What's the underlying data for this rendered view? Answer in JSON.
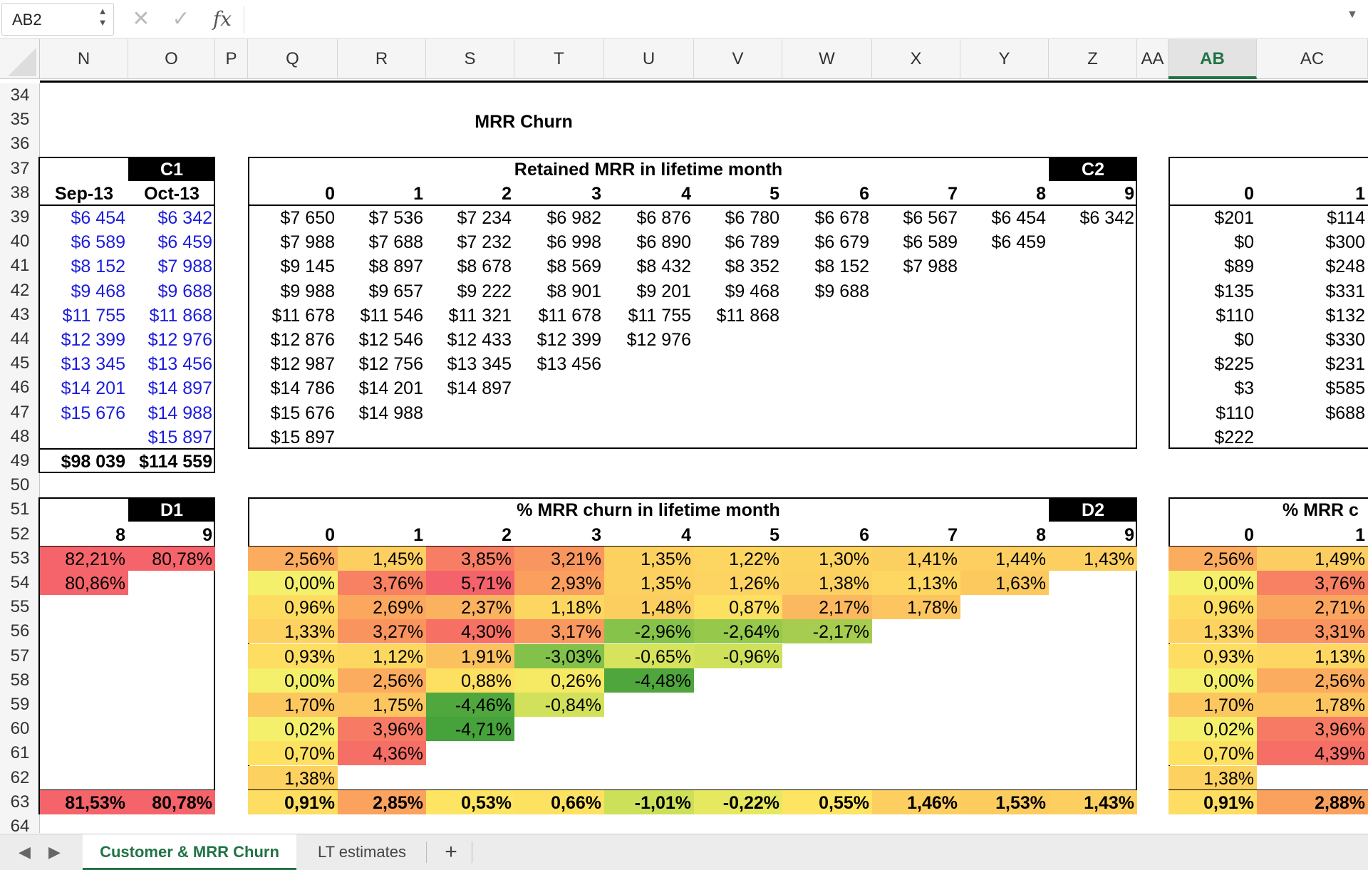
{
  "formula_bar": {
    "name_box": "AB2",
    "cancel": "✕",
    "confirm": "✓",
    "fx": "fx",
    "formula": ""
  },
  "columns": [
    "N",
    "O",
    "P",
    "Q",
    "R",
    "S",
    "T",
    "U",
    "V",
    "W",
    "X",
    "Y",
    "Z",
    "AA",
    "AB",
    "AC"
  ],
  "selected_column": "AB",
  "rows": [
    "34",
    "35",
    "36",
    "37",
    "38",
    "39",
    "40",
    "41",
    "42",
    "43",
    "44",
    "45",
    "46",
    "47",
    "48",
    "49",
    "50",
    "51",
    "52",
    "53",
    "54",
    "55",
    "56",
    "57",
    "58",
    "59",
    "60",
    "61",
    "62",
    "63",
    "64"
  ],
  "title": "MRR Churn",
  "c1": {
    "tag": "C1",
    "headers": [
      "Sep-13",
      "Oct-13"
    ],
    "values": [
      [
        "$6 454",
        "$6 342"
      ],
      [
        "$6 589",
        "$6 459"
      ],
      [
        "$8 152",
        "$7 988"
      ],
      [
        "$9 468",
        "$9 688"
      ],
      [
        "$11 755",
        "$11 868"
      ],
      [
        "$12 399",
        "$12 976"
      ],
      [
        "$13 345",
        "$13 456"
      ],
      [
        "$14 201",
        "$14 897"
      ],
      [
        "$15 676",
        "$14 988"
      ],
      [
        "",
        "$15 897"
      ]
    ],
    "totals": [
      "$98 039",
      "$114 559"
    ]
  },
  "c2": {
    "title": "Retained MRR in lifetime month",
    "tag": "C2",
    "headers": [
      "0",
      "1",
      "2",
      "3",
      "4",
      "5",
      "6",
      "7",
      "8",
      "9"
    ],
    "rows": [
      [
        "$7 650",
        "$7 536",
        "$7 234",
        "$6 982",
        "$6 876",
        "$6 780",
        "$6 678",
        "$6 567",
        "$6 454",
        "$6 342"
      ],
      [
        "$7 988",
        "$7 688",
        "$7 232",
        "$6 998",
        "$6 890",
        "$6 789",
        "$6 679",
        "$6 589",
        "$6 459"
      ],
      [
        "$9 145",
        "$8 897",
        "$8 678",
        "$8 569",
        "$8 432",
        "$8 352",
        "$8 152",
        "$7 988"
      ],
      [
        "$9 988",
        "$9 657",
        "$9 222",
        "$8 901",
        "$9 201",
        "$9 468",
        "$9 688"
      ],
      [
        "$11 678",
        "$11 546",
        "$11 321",
        "$11 678",
        "$11 755",
        "$11 868"
      ],
      [
        "$12 876",
        "$12 546",
        "$12 433",
        "$12 399",
        "$12 976"
      ],
      [
        "$12 987",
        "$12 756",
        "$13 345",
        "$13 456"
      ],
      [
        "$14 786",
        "$14 201",
        "$14 897"
      ],
      [
        "$15 676",
        "$14 988"
      ],
      [
        "$15 897"
      ]
    ]
  },
  "c3": {
    "headers": [
      "0",
      "1"
    ],
    "rows": [
      [
        "$201",
        "$114"
      ],
      [
        "$0",
        "$300"
      ],
      [
        "$89",
        "$248"
      ],
      [
        "$135",
        "$331"
      ],
      [
        "$110",
        "$132"
      ],
      [
        "$0",
        "$330"
      ],
      [
        "$225",
        "$231"
      ],
      [
        "$3",
        "$585"
      ],
      [
        "$110",
        "$688"
      ],
      [
        "$222",
        ""
      ]
    ]
  },
  "d1": {
    "tag": "D1",
    "headers": [
      "8",
      "9"
    ],
    "rows": [
      [
        {
          "v": "82,21%",
          "c": "#f4646a"
        },
        {
          "v": "80,78%",
          "c": "#f4646a"
        }
      ],
      [
        {
          "v": "80,86%",
          "c": "#f4646a"
        }
      ]
    ],
    "totals": [
      {
        "v": "81,53%",
        "c": "#f4646a"
      },
      {
        "v": "80,78%",
        "c": "#f4646a"
      }
    ]
  },
  "d2": {
    "title": "% MRR churn in lifetime month",
    "tag": "D2",
    "headers": [
      "0",
      "1",
      "2",
      "3",
      "4",
      "5",
      "6",
      "7",
      "8",
      "9"
    ],
    "rows": [
      [
        {
          "v": "2,56%",
          "c": "#fbac5e"
        },
        {
          "v": "1,45%",
          "c": "#fccf60"
        },
        {
          "v": "3,85%",
          "c": "#f77e64"
        },
        {
          "v": "3,21%",
          "c": "#f9965f"
        },
        {
          "v": "1,35%",
          "c": "#fcd160"
        },
        {
          "v": "1,22%",
          "c": "#fdd561"
        },
        {
          "v": "1,30%",
          "c": "#fdd360"
        },
        {
          "v": "1,41%",
          "c": "#fcd060"
        },
        {
          "v": "1,44%",
          "c": "#fccf60"
        },
        {
          "v": "1,43%",
          "c": "#fccf60"
        }
      ],
      [
        {
          "v": "0,00%",
          "c": "#f4f06c"
        },
        {
          "v": "3,76%",
          "c": "#f78162"
        },
        {
          "v": "5,71%",
          "c": "#f4636b"
        },
        {
          "v": "2,93%",
          "c": "#fa9f5e"
        },
        {
          "v": "1,35%",
          "c": "#fcd160"
        },
        {
          "v": "1,26%",
          "c": "#fdd461"
        },
        {
          "v": "1,38%",
          "c": "#fcd160"
        },
        {
          "v": "1,13%",
          "c": "#fdd761"
        },
        {
          "v": "1,63%",
          "c": "#fcc95f"
        }
      ],
      [
        {
          "v": "0,96%",
          "c": "#fddc62"
        },
        {
          "v": "2,69%",
          "c": "#fba75e"
        },
        {
          "v": "2,37%",
          "c": "#fbb25f"
        },
        {
          "v": "1,18%",
          "c": "#fdd661"
        },
        {
          "v": "1,48%",
          "c": "#fcce60"
        },
        {
          "v": "0,87%",
          "c": "#fddf62"
        },
        {
          "v": "2,17%",
          "c": "#fbb85f"
        },
        {
          "v": "1,78%",
          "c": "#fcc55f"
        }
      ],
      [
        {
          "v": "1,33%",
          "c": "#fdd260"
        },
        {
          "v": "3,27%",
          "c": "#f9945f"
        },
        {
          "v": "4,30%",
          "c": "#f67164"
        },
        {
          "v": "3,17%",
          "c": "#f9985f"
        },
        {
          "v": "-2,96%",
          "c": "#86c34a"
        },
        {
          "v": "-2,64%",
          "c": "#96c84c"
        },
        {
          "v": "-2,17%",
          "c": "#a6cd4f"
        }
      ],
      [
        {
          "v": "0,93%",
          "c": "#fddd62"
        },
        {
          "v": "1,12%",
          "c": "#fdd861"
        },
        {
          "v": "1,91%",
          "c": "#fcc15f"
        },
        {
          "v": "-3,03%",
          "c": "#82c14a"
        },
        {
          "v": "-0,65%",
          "c": "#d6e35c"
        },
        {
          "v": "-0,96%",
          "c": "#cfe05a"
        }
      ],
      [
        {
          "v": "0,00%",
          "c": "#f4f06c"
        },
        {
          "v": "2,56%",
          "c": "#fbac5e"
        },
        {
          "v": "0,88%",
          "c": "#fddf62"
        },
        {
          "v": "0,26%",
          "c": "#f6ea64"
        },
        {
          "v": "-4,48%",
          "c": "#4ea63d"
        }
      ],
      [
        {
          "v": "1,70%",
          "c": "#fcc75f"
        },
        {
          "v": "1,75%",
          "c": "#fcc55f"
        },
        {
          "v": "-4,46%",
          "c": "#4fa73d"
        },
        {
          "v": "-0,84%",
          "c": "#d2e15b"
        }
      ],
      [
        {
          "v": "0,02%",
          "c": "#f4f06c"
        },
        {
          "v": "3,96%",
          "c": "#f77b64"
        },
        {
          "v": "-4,71%",
          "c": "#46a23b"
        }
      ],
      [
        {
          "v": "0,70%",
          "c": "#fde262"
        },
        {
          "v": "4,36%",
          "c": "#f56f66"
        }
      ],
      [
        {
          "v": "1,38%",
          "c": "#fcd160"
        }
      ]
    ],
    "totals": [
      {
        "v": "0,91%",
        "c": "#fddd62"
      },
      {
        "v": "2,85%",
        "c": "#fba25e"
      },
      {
        "v": "0,53%",
        "c": "#fde462"
      },
      {
        "v": "0,66%",
        "c": "#fde262"
      },
      {
        "v": "-1,01%",
        "c": "#cde05a"
      },
      {
        "v": "-0,22%",
        "c": "#e6e960"
      },
      {
        "v": "0,55%",
        "c": "#fde462"
      },
      {
        "v": "1,46%",
        "c": "#fccf60"
      },
      {
        "v": "1,53%",
        "c": "#fccc5f"
      },
      {
        "v": "1,43%",
        "c": "#fccf60"
      }
    ]
  },
  "d3": {
    "title": "% MRR c",
    "headers": [
      "0",
      "1"
    ],
    "rows": [
      [
        {
          "v": "2,56%",
          "c": "#fbac5e"
        },
        {
          "v": "1,49%",
          "c": "#fccd60"
        }
      ],
      [
        {
          "v": "0,00%",
          "c": "#f4f06c"
        },
        {
          "v": "3,76%",
          "c": "#f78162"
        }
      ],
      [
        {
          "v": "0,96%",
          "c": "#fddc62"
        },
        {
          "v": "2,71%",
          "c": "#fba65e"
        }
      ],
      [
        {
          "v": "1,33%",
          "c": "#fdd260"
        },
        {
          "v": "3,31%",
          "c": "#f9935f"
        }
      ],
      [
        {
          "v": "0,93%",
          "c": "#fddd62"
        },
        {
          "v": "1,13%",
          "c": "#fdd761"
        }
      ],
      [
        {
          "v": "0,00%",
          "c": "#f4f06c"
        },
        {
          "v": "2,56%",
          "c": "#fbac5e"
        }
      ],
      [
        {
          "v": "1,70%",
          "c": "#fcc75f"
        },
        {
          "v": "1,78%",
          "c": "#fcc55f"
        }
      ],
      [
        {
          "v": "0,02%",
          "c": "#f4f06c"
        },
        {
          "v": "3,96%",
          "c": "#f77b64"
        }
      ],
      [
        {
          "v": "0,70%",
          "c": "#fde262"
        },
        {
          "v": "4,39%",
          "c": "#f56f66"
        }
      ],
      [
        {
          "v": "1,38%",
          "c": "#fcd160"
        }
      ]
    ],
    "totals": [
      {
        "v": "0,91%",
        "c": "#fddd62"
      },
      {
        "v": "2,88%",
        "c": "#fba15e"
      }
    ]
  },
  "sheet_tabs": {
    "active": "Customer & MRR Churn",
    "other": "LT estimates",
    "add": "+",
    "prev": "◀",
    "next": "▶"
  }
}
